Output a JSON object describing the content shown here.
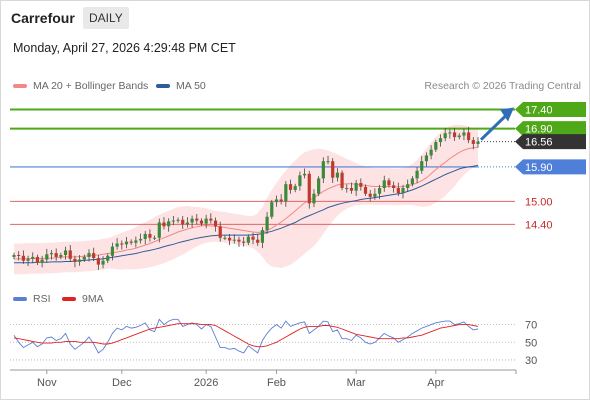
{
  "header": {
    "instrument": "Carrefour",
    "timeframe": "DAILY",
    "datetime": "Monday, April 27, 2026 4:29:48 PM CET"
  },
  "legend_main": [
    {
      "label": "MA 20 + Bollinger Bands",
      "color": "#f08a88"
    },
    {
      "label": "MA 50",
      "color": "#2f5c9c"
    }
  ],
  "credit": "Research © 2026 Trading Central",
  "legend_rsi": [
    {
      "label": "RSI",
      "color": "#5b7fd6"
    },
    {
      "label": "9MA",
      "color": "#e02222"
    }
  ],
  "colors": {
    "resistance": "#4fa818",
    "pivot": "#4f7fd8",
    "support": "#e06666",
    "current": "#333333",
    "candle_up": "#3a8a3a",
    "candle_down": "#c0392b",
    "band_fill": "#fde3e3",
    "arrow": "#2f6db5"
  },
  "chart_data": [
    {
      "type": "line",
      "name": "price",
      "x_tick_labels": [
        "Nov",
        "Dec",
        "2026",
        "Feb",
        "Mar",
        "Apr"
      ],
      "ylim": [
        13.0,
        17.7
      ],
      "levels": [
        {
          "value": 17.4,
          "label": "17.40",
          "kind": "resistance"
        },
        {
          "value": 16.9,
          "label": "16.90",
          "kind": "resistance"
        },
        {
          "value": 16.56,
          "label": "16.56",
          "kind": "current"
        },
        {
          "value": 15.9,
          "label": "15.90",
          "kind": "pivot"
        },
        {
          "value": 15.0,
          "label": "15.00",
          "kind": "support"
        },
        {
          "value": 14.4,
          "label": "14.40",
          "kind": "support"
        }
      ],
      "close": [
        13.6,
        13.58,
        13.45,
        13.5,
        13.55,
        13.4,
        13.48,
        13.62,
        13.65,
        13.55,
        13.6,
        13.72,
        13.5,
        13.42,
        13.48,
        13.55,
        13.65,
        13.52,
        13.35,
        13.45,
        13.58,
        13.82,
        13.9,
        13.88,
        13.95,
        13.92,
        13.98,
        14.02,
        14.15,
        14.05,
        14.05,
        14.45,
        14.35,
        14.48,
        14.5,
        14.52,
        14.4,
        14.45,
        14.55,
        14.5,
        14.42,
        14.55,
        14.5,
        14.35,
        14.05,
        14.05,
        13.98,
        14.0,
        13.95,
        13.92,
        14.08,
        14.0,
        13.92,
        14.25,
        14.6,
        14.98,
        15.05,
        15.0,
        15.45,
        15.3,
        15.4,
        15.68,
        15.72,
        14.95,
        15.2,
        15.6,
        16.05,
        16.05,
        15.62,
        15.75,
        15.35,
        15.35,
        15.28,
        15.48,
        15.38,
        15.2,
        15.12,
        15.2,
        15.35,
        15.55,
        15.42,
        15.35,
        15.22,
        15.35,
        15.45,
        15.6,
        15.8,
        16.05,
        16.2,
        16.35,
        16.55,
        16.65,
        16.78,
        16.8,
        16.68,
        16.72,
        16.8,
        16.6,
        16.5,
        16.56
      ],
      "ma20": [
        13.5,
        13.5,
        13.5,
        13.51,
        13.51,
        13.51,
        13.51,
        13.52,
        13.52,
        13.53,
        13.54,
        13.55,
        13.55,
        13.55,
        13.56,
        13.57,
        13.58,
        13.59,
        13.6,
        13.62,
        13.64,
        13.66,
        13.68,
        13.7,
        13.73,
        13.75,
        13.78,
        13.82,
        13.86,
        13.9,
        13.95,
        14.0,
        14.05,
        14.1,
        14.15,
        14.2,
        14.24,
        14.28,
        14.31,
        14.34,
        14.36,
        14.37,
        14.36,
        14.35,
        14.34,
        14.32,
        14.3,
        14.28,
        14.26,
        14.24,
        14.22,
        14.2,
        14.19,
        14.2,
        14.24,
        14.3,
        14.38,
        14.46,
        14.55,
        14.65,
        14.75,
        14.86,
        14.96,
        15.03,
        15.1,
        15.18,
        15.26,
        15.33,
        15.38,
        15.43,
        15.45,
        15.46,
        15.46,
        15.45,
        15.43,
        15.42,
        15.4,
        15.39,
        15.39,
        15.39,
        15.39,
        15.38,
        15.38,
        15.39,
        15.41,
        15.44,
        15.48,
        15.54,
        15.62,
        15.72,
        15.83,
        15.93,
        16.02,
        16.12,
        16.2,
        16.28,
        16.34,
        16.38,
        16.4,
        16.42
      ],
      "ma50": [
        13.4,
        13.4,
        13.4,
        13.4,
        13.4,
        13.41,
        13.41,
        13.41,
        13.42,
        13.42,
        13.42,
        13.43,
        13.43,
        13.44,
        13.45,
        13.46,
        13.47,
        13.48,
        13.49,
        13.5,
        13.52,
        13.54,
        13.56,
        13.58,
        13.6,
        13.62,
        13.64,
        13.67,
        13.7,
        13.72,
        13.75,
        13.78,
        13.82,
        13.85,
        13.88,
        13.92,
        13.95,
        13.98,
        14.01,
        14.04,
        14.06,
        14.08,
        14.1,
        14.11,
        14.12,
        14.12,
        14.12,
        14.12,
        14.12,
        14.12,
        14.12,
        14.13,
        14.14,
        14.16,
        14.19,
        14.22,
        14.26,
        14.3,
        14.35,
        14.4,
        14.45,
        14.52,
        14.58,
        14.63,
        14.68,
        14.73,
        14.78,
        14.84,
        14.88,
        14.92,
        14.95,
        14.98,
        15.0,
        15.02,
        15.05,
        15.07,
        15.08,
        15.1,
        15.12,
        15.14,
        15.16,
        15.18,
        15.2,
        15.22,
        15.26,
        15.3,
        15.35,
        15.4,
        15.46,
        15.52,
        15.58,
        15.64,
        15.7,
        15.75,
        15.8,
        15.85,
        15.88,
        15.9,
        15.92,
        15.94
      ],
      "band_width": [
        0.4,
        0.4,
        0.4,
        0.4,
        0.4,
        0.4,
        0.4,
        0.4,
        0.4,
        0.4,
        0.4,
        0.4,
        0.4,
        0.4,
        0.4,
        0.4,
        0.4,
        0.4,
        0.4,
        0.4,
        0.4,
        0.42,
        0.45,
        0.48,
        0.5,
        0.52,
        0.55,
        0.58,
        0.6,
        0.62,
        0.64,
        0.65,
        0.66,
        0.66,
        0.66,
        0.65,
        0.63,
        0.6,
        0.55,
        0.52,
        0.48,
        0.45,
        0.42,
        0.4,
        0.4,
        0.4,
        0.4,
        0.4,
        0.4,
        0.4,
        0.4,
        0.42,
        0.5,
        0.65,
        0.85,
        1.0,
        1.1,
        1.2,
        1.25,
        1.3,
        1.32,
        1.33,
        1.32,
        1.3,
        1.26,
        1.2,
        1.1,
        1.0,
        0.9,
        0.8,
        0.72,
        0.65,
        0.6,
        0.55,
        0.52,
        0.5,
        0.48,
        0.48,
        0.48,
        0.48,
        0.48,
        0.48,
        0.48,
        0.48,
        0.5,
        0.54,
        0.6,
        0.68,
        0.76,
        0.82,
        0.86,
        0.88,
        0.88,
        0.85,
        0.8,
        0.72,
        0.65,
        0.58,
        0.52,
        0.48
      ],
      "projection": {
        "from": 16.56,
        "to": 17.4
      }
    },
    {
      "type": "line",
      "name": "rsi",
      "y_tick_labels": [
        "70",
        "50",
        "30"
      ],
      "ylim": [
        22,
        82
      ],
      "levels": [
        70,
        50,
        30
      ],
      "rsi": [
        58,
        50,
        44,
        47,
        50,
        45,
        48,
        55,
        56,
        52,
        54,
        60,
        48,
        42,
        46,
        50,
        56,
        48,
        38,
        42,
        50,
        60,
        66,
        64,
        68,
        66,
        67,
        69,
        72,
        64,
        62,
        76,
        70,
        74,
        76,
        76,
        68,
        70,
        72,
        70,
        65,
        70,
        68,
        56,
        44,
        44,
        42,
        43,
        40,
        38,
        46,
        42,
        38,
        52,
        60,
        66,
        70,
        66,
        74,
        68,
        70,
        72,
        73,
        60,
        64,
        68,
        74,
        73,
        62,
        64,
        54,
        54,
        52,
        58,
        55,
        50,
        48,
        50,
        55,
        60,
        57,
        55,
        50,
        53,
        56,
        60,
        63,
        66,
        68,
        70,
        72,
        73,
        74,
        74,
        70,
        71,
        73,
        68,
        64,
        65
      ],
      "ma9": [
        55,
        54,
        53,
        52,
        51,
        50,
        49,
        49,
        49,
        50,
        50,
        51,
        51,
        51,
        50,
        50,
        50,
        50,
        49,
        48,
        48,
        49,
        51,
        53,
        55,
        57,
        59,
        61,
        63,
        65,
        66,
        67,
        68,
        69,
        70,
        71,
        71,
        71,
        71,
        71,
        70,
        70,
        70,
        69,
        66,
        63,
        60,
        57,
        54,
        51,
        48,
        46,
        45,
        45,
        46,
        48,
        50,
        53,
        56,
        59,
        62,
        65,
        67,
        68,
        68,
        68,
        69,
        69,
        68,
        67,
        65,
        63,
        61,
        59,
        58,
        57,
        56,
        55,
        54,
        54,
        54,
        54,
        54,
        55,
        55,
        56,
        57,
        58,
        60,
        62,
        64,
        66,
        67,
        68,
        69,
        70,
        70,
        70,
        69,
        68
      ]
    }
  ]
}
